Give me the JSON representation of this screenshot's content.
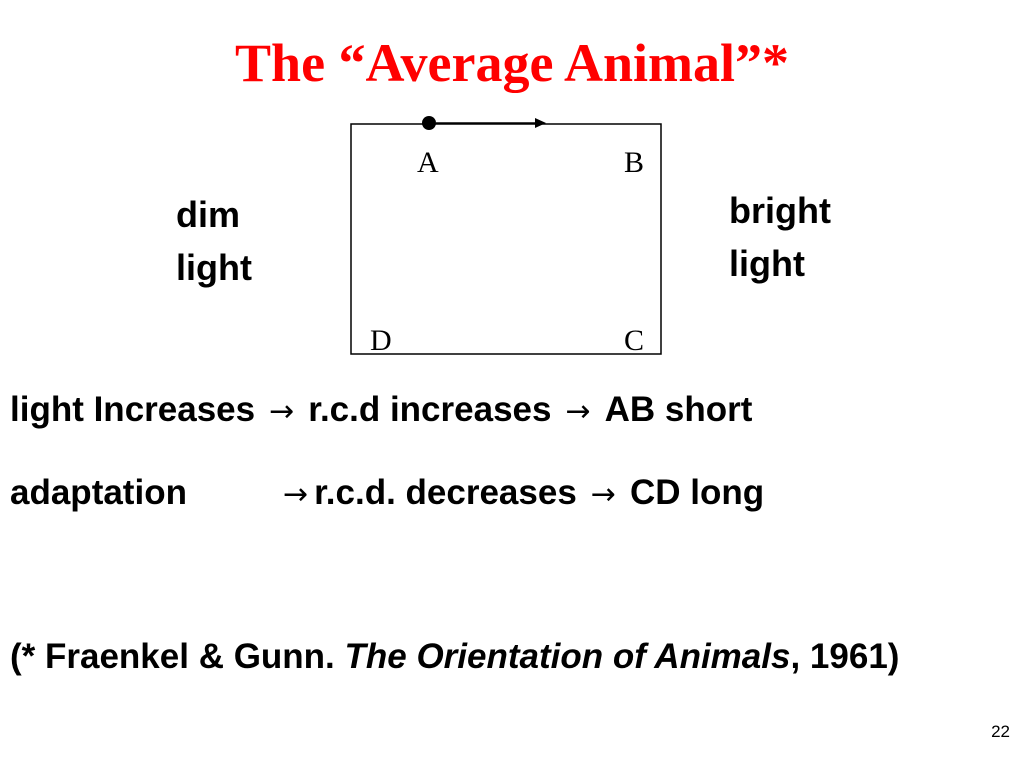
{
  "slide": {
    "title": "The “Average Animal”*",
    "page_number": "22"
  },
  "diagram": {
    "corners": {
      "a": "A",
      "b": "B",
      "c": "C",
      "d": "D"
    },
    "left_label": [
      "dim",
      "light"
    ],
    "right_label": [
      "bright",
      "light"
    ]
  },
  "statements": {
    "line1": {
      "part1": "light Increases",
      "arrow": "→",
      "part2": "r.c.d increases",
      "part3": "AB short"
    },
    "line2": {
      "part1": "adaptation",
      "arrow": "→",
      "part2": "r.c.d. decreases",
      "part3": "CD long"
    }
  },
  "citation": {
    "prefix": "(* Fraenkel & Gunn. ",
    "book_title": "The Orientation of Animals",
    "suffix": ", 1961)"
  }
}
